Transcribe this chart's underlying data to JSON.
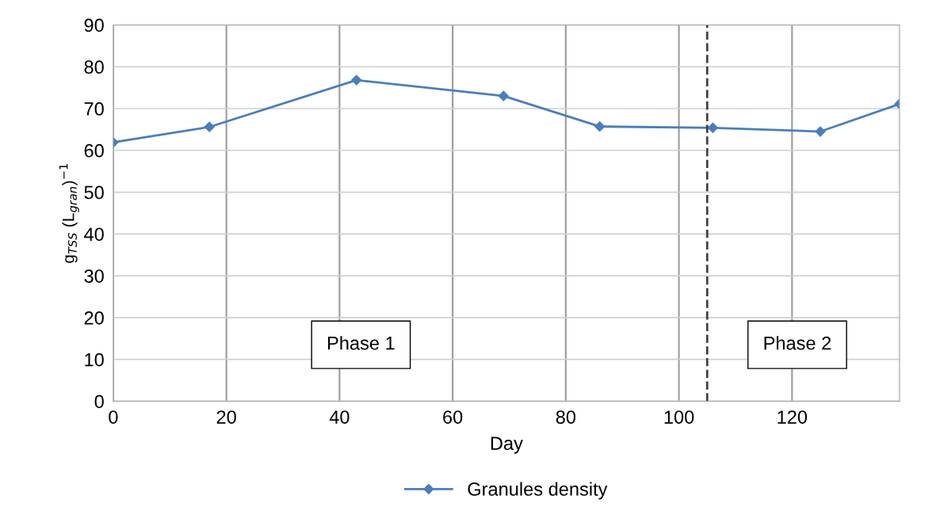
{
  "chart_data": {
    "type": "line",
    "xlabel": "Day",
    "ylabel": "g$_{TSS}$ (L$_{gran}$)$^{−1}$",
    "x": [
      0,
      17,
      43,
      69,
      86,
      106,
      125,
      139
    ],
    "series": [
      {
        "name": "Granules density",
        "color": "#4a7ebb",
        "values": [
          61.9,
          65.6,
          76.8,
          73.0,
          65.7,
          65.4,
          64.5,
          71.1
        ]
      }
    ],
    "xlim": [
      0,
      139
    ],
    "xticks": [
      0,
      20,
      40,
      60,
      80,
      100,
      120
    ],
    "ylim": [
      0,
      90
    ],
    "yticks": [
      0,
      10,
      20,
      30,
      40,
      50,
      60,
      70,
      80,
      90
    ],
    "ref_lines": [
      {
        "axis": "x",
        "value": 105,
        "color": "#404040",
        "line_style": "dashed"
      }
    ],
    "annotations": [
      "Phase 1",
      "Phase 2"
    ],
    "grid": true,
    "legend": "bottom",
    "marker": "diamond",
    "line_style": "solid"
  }
}
